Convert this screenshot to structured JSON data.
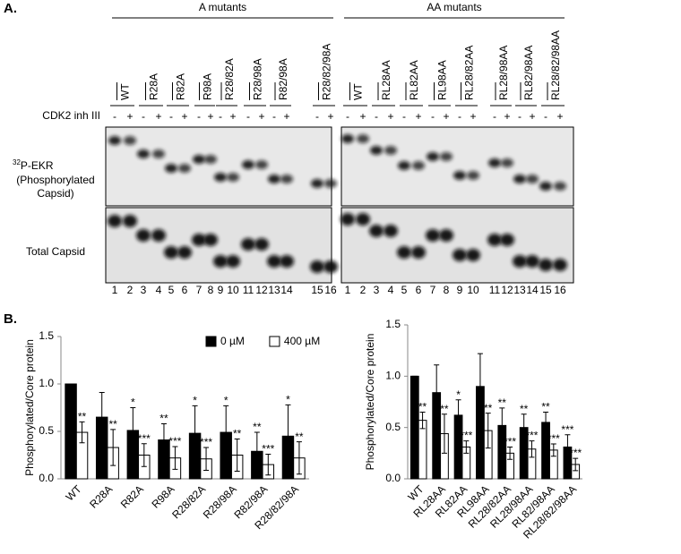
{
  "panel_a": {
    "label": "A.",
    "groups": [
      {
        "title": "A mutants",
        "lanes": [
          "WT",
          "R28A",
          "R82A",
          "R98A",
          "R28/82A",
          "R28/98A",
          "R82/98A",
          "R28/82/98A"
        ]
      },
      {
        "title": "AA mutants",
        "lanes": [
          "WT",
          "RL28AA",
          "RL82AA",
          "RL98AA",
          "RL28/82AA",
          "RL28/98AA",
          "RL82/98AA",
          "RL28/82/98AA"
        ]
      }
    ],
    "treatment_label": "CDK2 inh III",
    "signs": [
      "-",
      "+"
    ],
    "row_labels": {
      "phospho_sup": "32",
      "phospho": "P-EKR",
      "phospho_sub": "(Phosphorylated",
      "phospho_sub2": "Capsid)",
      "total": "Total Capsid"
    },
    "lane_numbers": [
      1,
      2,
      3,
      4,
      5,
      6,
      7,
      8,
      9,
      10,
      11,
      12,
      13,
      14,
      15,
      16
    ]
  },
  "panel_b_label": "B.",
  "chart_data": [
    {
      "type": "bar",
      "y_label": "Phosphorylated/Core protein",
      "categories": [
        "WT",
        "R28A",
        "R82A",
        "R98A",
        "R28/82A",
        "R28/98A",
        "R82/98A",
        "R28/82/98A"
      ],
      "series": [
        {
          "name": "0 µM",
          "color": "#000000",
          "values": [
            1.0,
            0.65,
            0.51,
            0.41,
            0.48,
            0.49,
            0.29,
            0.45
          ],
          "errors": [
            0,
            0.26,
            0.24,
            0.17,
            0.29,
            0.28,
            0.2,
            0.33
          ],
          "annotations": [
            null,
            null,
            "*",
            "**",
            "*",
            "*",
            "**",
            "*"
          ]
        },
        {
          "name": "400 µM",
          "color": "#ffffff",
          "values": [
            0.49,
            0.33,
            0.25,
            0.22,
            0.21,
            0.25,
            0.15,
            0.22
          ],
          "errors": [
            0.11,
            0.19,
            0.12,
            0.12,
            0.12,
            0.17,
            0.11,
            0.17
          ],
          "annotations": [
            "**",
            "**",
            "***",
            "***",
            "***",
            "**",
            "***",
            "**"
          ]
        }
      ],
      "ylim": [
        0,
        1.5
      ],
      "yticks": [
        {
          "value": 0,
          "label": "0.0"
        },
        0.5,
        {
          "value": 1,
          "label": "1.0"
        },
        1.5
      ]
    },
    {
      "type": "bar",
      "y_label": "Phosphorylated/Core protein",
      "categories": [
        "WT",
        "RL28AA",
        "RL82AA",
        "RL98AA",
        "RL28/82AA",
        "RL28/98AA",
        "RL82/98AA",
        "RL28/82/98AA"
      ],
      "series": [
        {
          "color": "#000000",
          "values": [
            1.0,
            0.84,
            0.62,
            0.9,
            0.52,
            0.5,
            0.55,
            0.31
          ],
          "errors": [
            0,
            0.27,
            0.15,
            0.32,
            0.17,
            0.13,
            0.1,
            0.12
          ],
          "annotations": [
            null,
            null,
            "*",
            null,
            "**",
            "**",
            "**",
            "***"
          ]
        },
        {
          "color": "#ffffff",
          "values": [
            0.57,
            0.44,
            0.31,
            0.47,
            0.25,
            0.29,
            0.28,
            0.14
          ],
          "errors": [
            0.08,
            0.19,
            0.06,
            0.17,
            0.06,
            0.08,
            0.06,
            0.06
          ],
          "annotations": [
            "**",
            "**",
            "***",
            "**",
            "***",
            "***",
            "***",
            "***"
          ]
        }
      ],
      "ylim": [
        0,
        1.5
      ],
      "yticks": [
        {
          "value": 0,
          "label": "0.0"
        },
        0.5,
        {
          "value": 1,
          "label": "1.0"
        },
        1.5
      ]
    }
  ]
}
